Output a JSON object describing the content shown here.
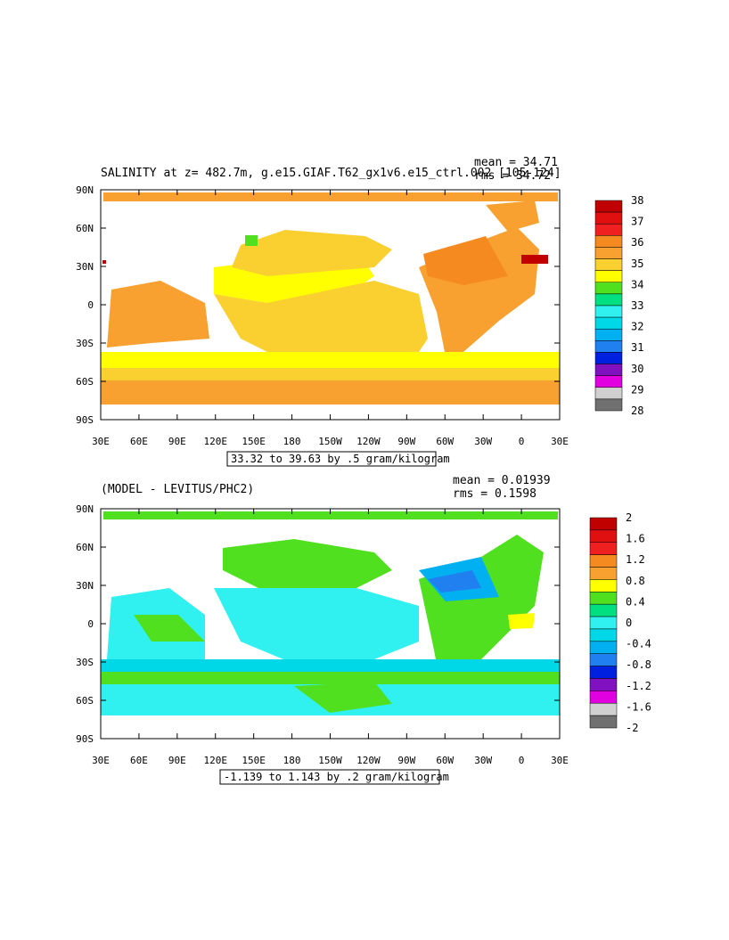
{
  "top_panel": {
    "title": "SALINITY at z= 482.7m, g.e15.GIAF.T62_gx1v6.e15_ctrl.002 [105-124]",
    "mean_text": "mean = 34.71",
    "rms_text": "rms = 34.72",
    "range_label": "33.32 to 39.63 by .5 gram/kilogram",
    "colorbar": {
      "labels": [
        "38",
        "37",
        "36",
        "35",
        "34",
        "33",
        "32",
        "31",
        "30",
        "29",
        "28"
      ],
      "colors": [
        "#c00000",
        "#e01010",
        "#f02020",
        "#f58a20",
        "#f8a030",
        "#fad030",
        "#ffff00",
        "#50e020",
        "#00e080",
        "#30f0f0",
        "#00d8e8",
        "#00b0f0",
        "#2080f0",
        "#0020e0",
        "#8010c0",
        "#e000e0",
        "#d0d0d0",
        "#707070"
      ]
    }
  },
  "bottom_panel": {
    "title": "(MODEL - LEVITUS/PHC2)",
    "mean_text": "mean = 0.01939",
    "rms_text": "rms = 0.1598",
    "range_label": "-1.139 to 1.143 by .2 gram/kilogram",
    "colorbar": {
      "labels": [
        "2",
        "1.6",
        "1.2",
        "0.8",
        "0.4",
        "0",
        "-0.4",
        "-0.8",
        "-1.2",
        "-1.6",
        "-2"
      ],
      "colors": [
        "#c00000",
        "#e01010",
        "#f02020",
        "#f58a20",
        "#f8a030",
        "#ffff00",
        "#50e020",
        "#00e080",
        "#30f0f0",
        "#00d8e8",
        "#00b0f0",
        "#2080f0",
        "#0020e0",
        "#8010c0",
        "#e000e0",
        "#d0d0d0",
        "#707070"
      ]
    }
  },
  "axes": {
    "lat_labels": [
      "90N",
      "60N",
      "30N",
      "0",
      "30S",
      "60S",
      "90S"
    ],
    "lon_labels": [
      "30E",
      "60E",
      "90E",
      "120E",
      "150E",
      "180",
      "150W",
      "120W",
      "90W",
      "60W",
      "30W",
      "0",
      "30E"
    ]
  }
}
